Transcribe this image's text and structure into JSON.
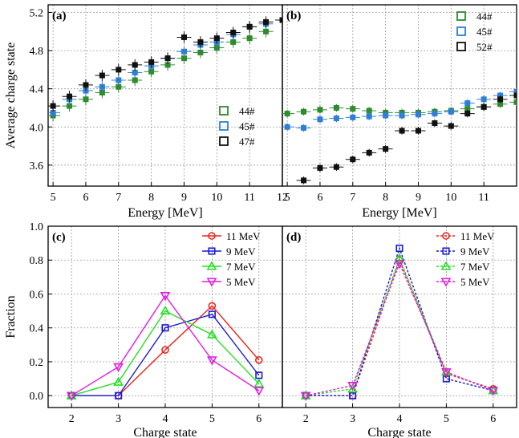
{
  "chart_data": [
    {
      "id": "a",
      "type": "scatter",
      "panel_label": "(a)",
      "xlabel": "Energy [MeV]",
      "ylabel": "Average charge state",
      "xlim": [
        4.85,
        12.0
      ],
      "ylim": [
        3.38,
        5.28
      ],
      "xticks": [
        5,
        6,
        7,
        8,
        9,
        10,
        11,
        12
      ],
      "yticks": [
        3.6,
        4.0,
        4.4,
        4.8,
        5.2
      ],
      "ytick_labels": [
        "3.6",
        "4.0",
        "4.4",
        "4.8",
        "5.2"
      ],
      "grid": true,
      "legend_position": "lower-right",
      "series": [
        {
          "name": "44#",
          "color": "#2e8b2e",
          "marker": "square",
          "x": [
            5.0,
            5.5,
            6.0,
            6.5,
            7.0,
            7.5,
            8.0,
            8.5,
            9.0,
            9.5,
            10.0,
            10.5,
            11.0,
            11.5
          ],
          "y": [
            4.12,
            4.22,
            4.29,
            4.36,
            4.42,
            4.49,
            4.58,
            4.65,
            4.72,
            4.78,
            4.83,
            4.89,
            4.93,
            5.0
          ]
        },
        {
          "name": "45#",
          "color": "#2f7fd4",
          "marker": "square",
          "x": [
            5.0,
            5.5,
            6.0,
            6.5,
            7.0,
            7.5,
            8.0,
            8.5,
            9.0,
            9.5,
            10.0,
            10.5,
            11.0,
            11.5
          ],
          "y": [
            4.15,
            4.29,
            4.38,
            4.42,
            4.49,
            4.57,
            4.64,
            4.72,
            4.79,
            4.86,
            4.89,
            4.97,
            5.05,
            5.08
          ]
        },
        {
          "name": "47#",
          "color": "#111111",
          "marker": "square",
          "x": [
            5.0,
            5.5,
            6.0,
            6.5,
            7.0,
            7.5,
            8.0,
            8.5,
            9.0,
            9.5,
            10.0,
            10.5,
            11.0,
            11.5,
            12.0
          ],
          "y": [
            4.22,
            4.32,
            4.44,
            4.54,
            4.6,
            4.65,
            4.68,
            4.72,
            4.94,
            4.89,
            4.93,
            4.99,
            5.05,
            5.1,
            5.12
          ]
        }
      ]
    },
    {
      "id": "b",
      "type": "scatter",
      "panel_label": "(b)",
      "xlabel": "Energy [MeV]",
      "ylabel": "",
      "xlim": [
        4.85,
        12.0
      ],
      "ylim": [
        3.38,
        5.28
      ],
      "xticks": [
        5,
        6,
        7,
        8,
        9,
        10,
        11
      ],
      "grid": true,
      "legend_position": "upper-right",
      "series": [
        {
          "name": "44#",
          "color": "#2e8b2e",
          "marker": "square",
          "x": [
            5.0,
            5.5,
            6.0,
            6.5,
            7.0,
            7.5,
            8.0,
            8.5,
            9.0,
            9.5,
            10.0,
            10.5,
            11.0,
            11.5,
            12.0
          ],
          "y": [
            4.14,
            4.16,
            4.18,
            4.2,
            4.19,
            4.17,
            4.15,
            4.15,
            4.15,
            4.16,
            4.17,
            4.19,
            4.21,
            4.24,
            4.26
          ]
        },
        {
          "name": "45#",
          "color": "#2f7fd4",
          "marker": "square",
          "x": [
            5.0,
            5.5,
            6.0,
            6.5,
            7.0,
            7.5,
            8.0,
            8.5,
            9.0,
            9.5,
            10.0,
            10.5,
            11.0,
            11.5,
            12.0
          ],
          "y": [
            4.0,
            3.99,
            4.08,
            4.09,
            4.1,
            4.11,
            4.12,
            4.12,
            4.13,
            4.14,
            4.16,
            4.25,
            4.29,
            4.33,
            4.37
          ]
        },
        {
          "name": "52#",
          "color": "#111111",
          "marker": "square",
          "x": [
            5.5,
            6.0,
            6.5,
            7.0,
            7.5,
            8.0,
            8.5,
            9.0,
            9.5,
            10.0,
            10.5,
            11.0,
            11.5,
            12.0
          ],
          "y": [
            3.44,
            3.57,
            3.58,
            3.66,
            3.73,
            3.77,
            3.96,
            3.96,
            4.04,
            4.01,
            4.14,
            4.21,
            4.29,
            4.33
          ]
        }
      ]
    },
    {
      "id": "c",
      "type": "line",
      "panel_label": "(c)",
      "xlabel": "Charge state",
      "ylabel": "Fraction",
      "xlim": [
        1.5,
        6.5
      ],
      "ylim": [
        -0.07,
        1.0
      ],
      "xticks": [
        2,
        3,
        4,
        5,
        6
      ],
      "yticks": [
        0.0,
        0.2,
        0.4,
        0.6,
        0.8,
        1.0
      ],
      "ytick_labels": [
        "0.0",
        "0.2",
        "0.4",
        "0.6",
        "0.8",
        "1.0"
      ],
      "grid": true,
      "legend_position": "upper-right",
      "x": [
        2,
        3,
        4,
        5,
        6
      ],
      "series": [
        {
          "name": "11 MeV",
          "color": "#e8271c",
          "marker": "circle",
          "dash": "solid",
          "values": [
            0.0,
            0.0,
            0.27,
            0.53,
            0.21
          ]
        },
        {
          "name": "9 MeV",
          "color": "#1a1ad4",
          "marker": "square",
          "dash": "solid",
          "values": [
            0.0,
            0.0,
            0.4,
            0.48,
            0.12
          ]
        },
        {
          "name": "7 MeV",
          "color": "#22e022",
          "marker": "triangle-up",
          "dash": "solid",
          "values": [
            0.0,
            0.08,
            0.5,
            0.36,
            0.07
          ]
        },
        {
          "name": "5 MeV",
          "color": "#e01ee0",
          "marker": "triangle-down",
          "dash": "solid",
          "values": [
            0.0,
            0.17,
            0.59,
            0.21,
            0.03
          ]
        }
      ]
    },
    {
      "id": "d",
      "type": "line",
      "panel_label": "(d)",
      "xlabel": "Charge state",
      "ylabel": "",
      "xlim": [
        1.5,
        6.5
      ],
      "ylim": [
        -0.07,
        1.0
      ],
      "xticks": [
        2,
        3,
        4,
        5,
        6
      ],
      "grid": true,
      "legend_position": "upper-right",
      "x": [
        2,
        3,
        4,
        5,
        6
      ],
      "series": [
        {
          "name": "11 MeV",
          "color": "#e8271c",
          "marker": "circle",
          "dash": "dotted",
          "values": [
            0.0,
            0.0,
            0.8,
            0.13,
            0.04
          ]
        },
        {
          "name": "9 MeV",
          "color": "#1a1ad4",
          "marker": "square",
          "dash": "dotted",
          "values": [
            0.0,
            0.0,
            0.87,
            0.1,
            0.03
          ]
        },
        {
          "name": "7 MeV",
          "color": "#22e022",
          "marker": "triangle-up",
          "dash": "dotted",
          "values": [
            0.0,
            0.04,
            0.81,
            0.14,
            0.03
          ]
        },
        {
          "name": "5 MeV",
          "color": "#e01ee0",
          "marker": "triangle-down",
          "dash": "dotted",
          "values": [
            0.0,
            0.06,
            0.78,
            0.14,
            0.03
          ]
        }
      ]
    }
  ]
}
